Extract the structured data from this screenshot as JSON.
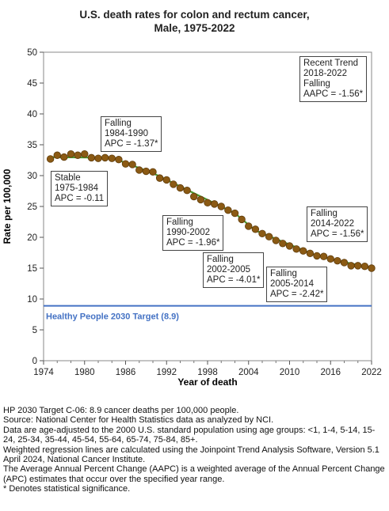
{
  "chart_data": {
    "type": "scatter",
    "title_line1": "U.S. death rates for colon and rectum cancer,",
    "title_line2": "Male,  1975-2022",
    "xlabel": "Year of death",
    "ylabel": "Rate per 100,000",
    "xlim": [
      1974,
      2022
    ],
    "ylim": [
      0,
      50
    ],
    "xticks": [
      1974,
      1980,
      1986,
      1992,
      1998,
      2004,
      2010,
      2016,
      2022
    ],
    "yticks": [
      0,
      5,
      10,
      15,
      20,
      25,
      30,
      35,
      40,
      45,
      50
    ],
    "grid": false,
    "points_color": "#8b5a14",
    "fit_color": "#4a9a2e",
    "target": {
      "value": 8.9,
      "label": "Healthy People 2030 Target (8.9)",
      "color": "#4472c4"
    },
    "x": [
      1975,
      1976,
      1977,
      1978,
      1979,
      1980,
      1981,
      1982,
      1983,
      1984,
      1985,
      1986,
      1987,
      1988,
      1989,
      1990,
      1991,
      1992,
      1993,
      1994,
      1995,
      1996,
      1997,
      1998,
      1999,
      2000,
      2001,
      2002,
      2003,
      2004,
      2005,
      2006,
      2007,
      2008,
      2009,
      2010,
      2011,
      2012,
      2013,
      2014,
      2015,
      2016,
      2017,
      2018,
      2019,
      2020,
      2021,
      2022
    ],
    "y": [
      32.7,
      33.3,
      33.0,
      33.5,
      33.3,
      33.5,
      32.9,
      32.8,
      32.9,
      32.8,
      32.6,
      31.9,
      31.8,
      30.9,
      30.7,
      30.6,
      29.6,
      29.3,
      28.6,
      28.0,
      27.6,
      26.6,
      26.1,
      25.6,
      25.4,
      25.0,
      24.4,
      23.9,
      22.9,
      21.8,
      21.3,
      20.6,
      20.1,
      19.5,
      19.0,
      18.6,
      18.1,
      17.8,
      17.4,
      17.0,
      16.9,
      16.5,
      16.2,
      15.9,
      15.4,
      15.4,
      15.3,
      15.0
    ],
    "segments": [
      {
        "x0": 1975,
        "y0": 33.0,
        "x1": 1984,
        "y1": 32.9
      },
      {
        "x0": 1984,
        "y0": 32.9,
        "x1": 1990,
        "y1": 30.4
      },
      {
        "x0": 1990,
        "y0": 30.4,
        "x1": 2002,
        "y1": 23.9
      },
      {
        "x0": 2002,
        "y0": 23.9,
        "x1": 2005,
        "y1": 21.1
      },
      {
        "x0": 2005,
        "y0": 21.1,
        "x1": 2014,
        "y1": 17.0
      },
      {
        "x0": 2014,
        "y0": 17.0,
        "x1": 2022,
        "y1": 15.0
      }
    ],
    "annotations": [
      {
        "lines": [
          "Falling",
          "1984-1990",
          "APC = -1.37*"
        ]
      },
      {
        "lines": [
          "Stable",
          "1975-1984",
          "APC = -0.11"
        ]
      },
      {
        "lines": [
          "Falling",
          "1990-2002",
          "APC = -1.96*"
        ]
      },
      {
        "lines": [
          "Falling",
          "2002-2005",
          "APC = -4.01*"
        ]
      },
      {
        "lines": [
          "Falling",
          "2005-2014",
          "APC = -2.42*"
        ]
      },
      {
        "lines": [
          "Falling",
          "2014-2022",
          "APC = -1.56*"
        ]
      },
      {
        "lines": [
          "Recent Trend",
          "2018-2022",
          "Falling",
          "AAPC = -1.56*"
        ]
      }
    ]
  },
  "notes": [
    "HP 2030 Target C-06: 8.9 cancer deaths per 100,000 people.",
    "Source: National Center for Health Statistics data as analyzed by NCI.",
    "Data are age-adjusted to the 2000 U.S. standard population using age groups: <1, 1-4, 5-14, 15-24, 25-34, 35-44, 45-54, 55-64, 65-74, 75-84, 85+.",
    "Weighted regression lines are calculated using the Joinpoint Trend Analysis Software, Version 5.1 April 2024, National Cancer Institute.",
    "The Average Annual Percent Change (AAPC) is a weighted average of the Annual Percent Change (APC) estimates that occur over the specified year range.",
    "* Denotes statistical significance."
  ]
}
